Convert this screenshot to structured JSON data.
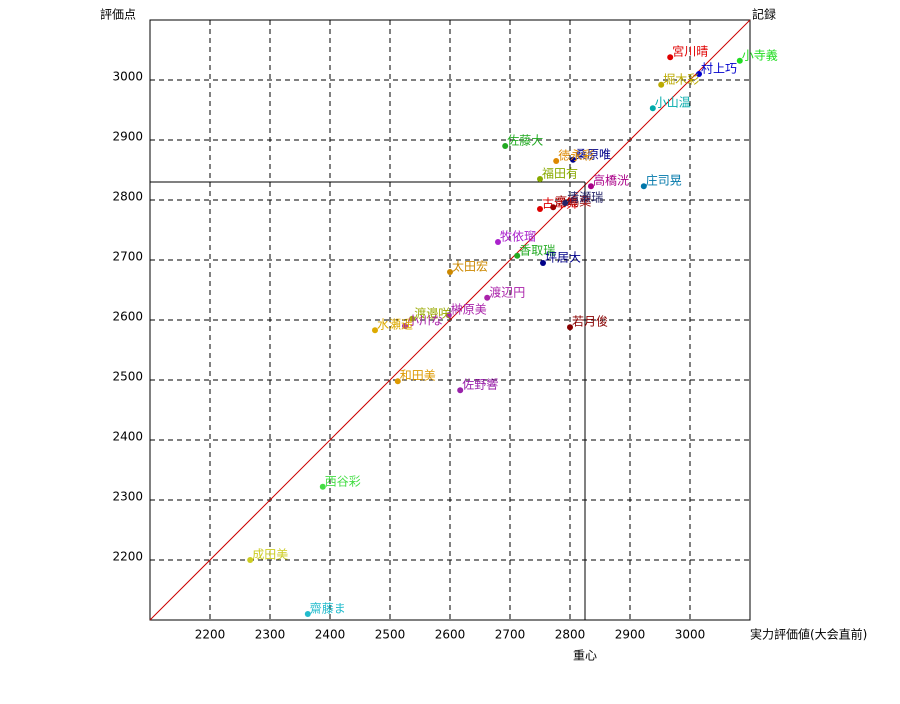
{
  "chart_data": {
    "type": "scatter",
    "ylabel": "評価点",
    "y2label": "記録",
    "xlabel": "実力評価値(大会直前)",
    "center_label": "重心",
    "center": [
      2825,
      2830
    ],
    "xlim": [
      2100,
      3100
    ],
    "ylim": [
      2100,
      3100
    ],
    "xticks": [
      2200,
      2300,
      2400,
      2500,
      2600,
      2700,
      2800,
      2900,
      3000
    ],
    "yticks": [
      2200,
      2300,
      2400,
      2500,
      2600,
      2700,
      2800,
      2900,
      3000
    ],
    "grid": true,
    "diagonal_color": "#cc0000",
    "series": [
      {
        "name": "宮川晴",
        "color": "#e00000",
        "x": [
          2967
        ],
        "values": [
          3038
        ]
      },
      {
        "name": "小寺義",
        "color": "#22dd22",
        "x": [
          3083
        ],
        "values": [
          3032
        ]
      },
      {
        "name": "村上巧",
        "color": "#0000cc",
        "x": [
          3015
        ],
        "values": [
          3010
        ]
      },
      {
        "name": "堀木彩",
        "color": "#bbaa00",
        "x": [
          2952
        ],
        "values": [
          2992
        ]
      },
      {
        "name": "小山温",
        "color": "#00aaaa",
        "x": [
          2938
        ],
        "values": [
          2953
        ]
      },
      {
        "name": "佐藤大",
        "color": "#22aa22",
        "x": [
          2692
        ],
        "values": [
          2890
        ]
      },
      {
        "name": "桑原唯",
        "color": "#000088",
        "x": [
          2805
        ],
        "values": [
          2867
        ]
      },
      {
        "name": "徳永彩",
        "color": "#dd8800",
        "x": [
          2777
        ],
        "values": [
          2865
        ]
      },
      {
        "name": "福田有",
        "color": "#88aa00",
        "x": [
          2750
        ],
        "values": [
          2835
        ]
      },
      {
        "name": "高橋洸",
        "color": "#aa0088",
        "x": [
          2835
        ],
        "values": [
          2823
        ]
      },
      {
        "name": "庄司晃",
        "color": "#0077aa",
        "x": [
          2923
        ],
        "values": [
          2823
        ]
      },
      {
        "name": "古澤舞",
        "color": "#dd0000",
        "x": [
          2750
        ],
        "values": [
          2785
        ]
      },
      {
        "name": "高嶋葉",
        "color": "#990000",
        "x": [
          2772
        ],
        "values": [
          2788
        ]
      },
      {
        "name": "清瀬瑞",
        "color": "#222266",
        "x": [
          2792
        ],
        "values": [
          2795
        ]
      },
      {
        "name": "牧依瑠",
        "color": "#aa22cc",
        "x": [
          2680
        ],
        "values": [
          2730
        ]
      },
      {
        "name": "香取瑞",
        "color": "#22aa22",
        "x": [
          2712
        ],
        "values": [
          2707
        ]
      },
      {
        "name": "坪居大",
        "color": "#000088",
        "x": [
          2755
        ],
        "values": [
          2695
        ]
      },
      {
        "name": "太田宏",
        "color": "#cc8800",
        "x": [
          2600
        ],
        "values": [
          2680
        ]
      },
      {
        "name": "渡辺円",
        "color": "#aa22aa",
        "x": [
          2662
        ],
        "values": [
          2637
        ]
      },
      {
        "name": "榊原美",
        "color": "#aa22aa",
        "x": [
          2598
        ],
        "values": [
          2608
        ]
      },
      {
        "name": "渡邉咲",
        "color": "#99aa00",
        "x": [
          2537
        ],
        "values": [
          2602
        ]
      },
      {
        "name": "小川な",
        "color": "#aa22aa",
        "x": [
          2525
        ],
        "values": [
          2590
        ]
      },
      {
        "name": "水瀬遥",
        "color": "#ddaa00",
        "x": [
          2475
        ],
        "values": [
          2583
        ]
      },
      {
        "name": "若月俊",
        "color": "#880000",
        "x": [
          2800
        ],
        "values": [
          2588
        ]
      },
      {
        "name": "和田美",
        "color": "#dd9900",
        "x": [
          2513
        ],
        "values": [
          2498
        ]
      },
      {
        "name": "佐野響",
        "color": "#9922aa",
        "x": [
          2617
        ],
        "values": [
          2483
        ]
      },
      {
        "name": "西谷彩",
        "color": "#44dd44",
        "x": [
          2388
        ],
        "values": [
          2322
        ]
      },
      {
        "name": "成田美",
        "color": "#cccc22",
        "x": [
          2267
        ],
        "values": [
          2200
        ]
      },
      {
        "name": "齋藤ま",
        "color": "#22bbcc",
        "x": [
          2363
        ],
        "values": [
          2110
        ]
      }
    ]
  }
}
